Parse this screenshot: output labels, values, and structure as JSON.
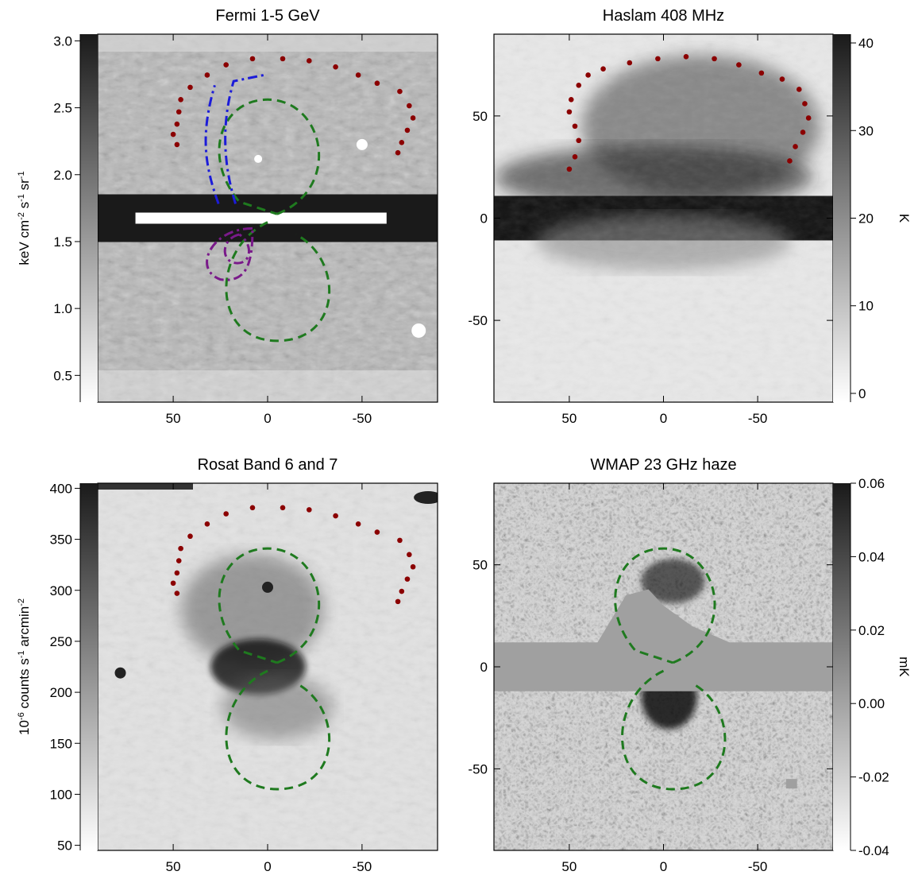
{
  "chart_data": [
    {
      "type": "heatmap",
      "title": "Fermi 1-5 GeV",
      "colorbar": {
        "side": "left",
        "label_parts": [
          "keV cm",
          "-2",
          " s",
          "-1",
          " sr",
          "-1"
        ],
        "range": [
          0.3,
          3.05
        ],
        "ticks": [
          "0.5",
          "1.0",
          "1.5",
          "2.0",
          "2.5",
          "3.0"
        ],
        "tick_values": [
          0.5,
          1.0,
          1.5,
          2.0,
          2.5,
          3.0
        ]
      },
      "x_axis": {
        "ticks": [
          "50",
          "0",
          "-50"
        ],
        "tick_values": [
          50,
          0,
          -50
        ],
        "range": [
          90,
          -90
        ]
      },
      "y_axis": {
        "range": [
          -90,
          90
        ],
        "ticks": [],
        "tick_values": []
      },
      "colormap": "grayscale (white = low, black = high)",
      "overlays": [
        "dark red dotted arc (radio/X-ray edge)",
        "blue dash-dot outline",
        "green dashed bubble outlines",
        "purple dash-dot outline"
      ]
    },
    {
      "type": "heatmap",
      "title": "Haslam 408 MHz",
      "colorbar": {
        "side": "right",
        "label": "K",
        "range": [
          -1,
          41
        ],
        "ticks": [
          "0",
          "10",
          "20",
          "30",
          "40"
        ],
        "tick_values": [
          0,
          10,
          20,
          30,
          40
        ]
      },
      "x_axis": {
        "ticks": [
          "50",
          "0",
          "-50"
        ],
        "tick_values": [
          50,
          0,
          -50
        ],
        "range": [
          90,
          -90
        ]
      },
      "y_axis": {
        "range": [
          -90,
          90
        ],
        "ticks": [
          "50",
          "0",
          "-50"
        ],
        "tick_values": [
          50,
          0,
          -50
        ]
      },
      "colormap": "grayscale (white = low, black = high)",
      "overlays": [
        "dark red dotted arc (radio/X-ray edge)"
      ]
    },
    {
      "type": "heatmap",
      "title": "Rosat Band 6 and 7",
      "colorbar": {
        "side": "left",
        "label_parts": [
          "10",
          "-6",
          " counts s",
          "-1",
          " arcmin",
          "-2"
        ],
        "range": [
          45,
          405
        ],
        "ticks": [
          "50",
          "100",
          "150",
          "200",
          "250",
          "300",
          "350",
          "400"
        ],
        "tick_values": [
          50,
          100,
          150,
          200,
          250,
          300,
          350,
          400
        ]
      },
      "x_axis": {
        "ticks": [
          "50",
          "0",
          "-50"
        ],
        "tick_values": [
          50,
          0,
          -50
        ],
        "range": [
          90,
          -90
        ]
      },
      "y_axis": {
        "range": [
          -90,
          90
        ],
        "ticks": [],
        "tick_values": []
      },
      "colormap": "grayscale (white = low, black = high)",
      "overlays": [
        "dark red dotted arc (radio/X-ray edge)",
        "green dashed bubble outlines"
      ]
    },
    {
      "type": "heatmap",
      "title": "WMAP 23 GHz haze",
      "colorbar": {
        "side": "right",
        "label": "mK",
        "range": [
          -0.04,
          0.06
        ],
        "ticks": [
          "-0.04",
          "-0.02",
          "0.00",
          "0.02",
          "0.04",
          "0.06"
        ],
        "tick_values": [
          -0.04,
          -0.02,
          0.0,
          0.02,
          0.04,
          0.06
        ]
      },
      "x_axis": {
        "ticks": [
          "50",
          "0",
          "-50"
        ],
        "tick_values": [
          50,
          0,
          -50
        ],
        "range": [
          90,
          -90
        ]
      },
      "y_axis": {
        "range": [
          -90,
          90
        ],
        "ticks": [
          "50",
          "0",
          "-50"
        ],
        "tick_values": [
          50,
          0,
          -50
        ]
      },
      "colormap": "grayscale (white = low, black = high), masked plane in mid gray",
      "overlays": [
        "green dashed bubble outlines"
      ]
    }
  ],
  "overlay_colors": {
    "dots": "#8b0000",
    "blue": "#1c1cd9",
    "green": "#1f7a1f",
    "purple": "#7a1a8a"
  }
}
